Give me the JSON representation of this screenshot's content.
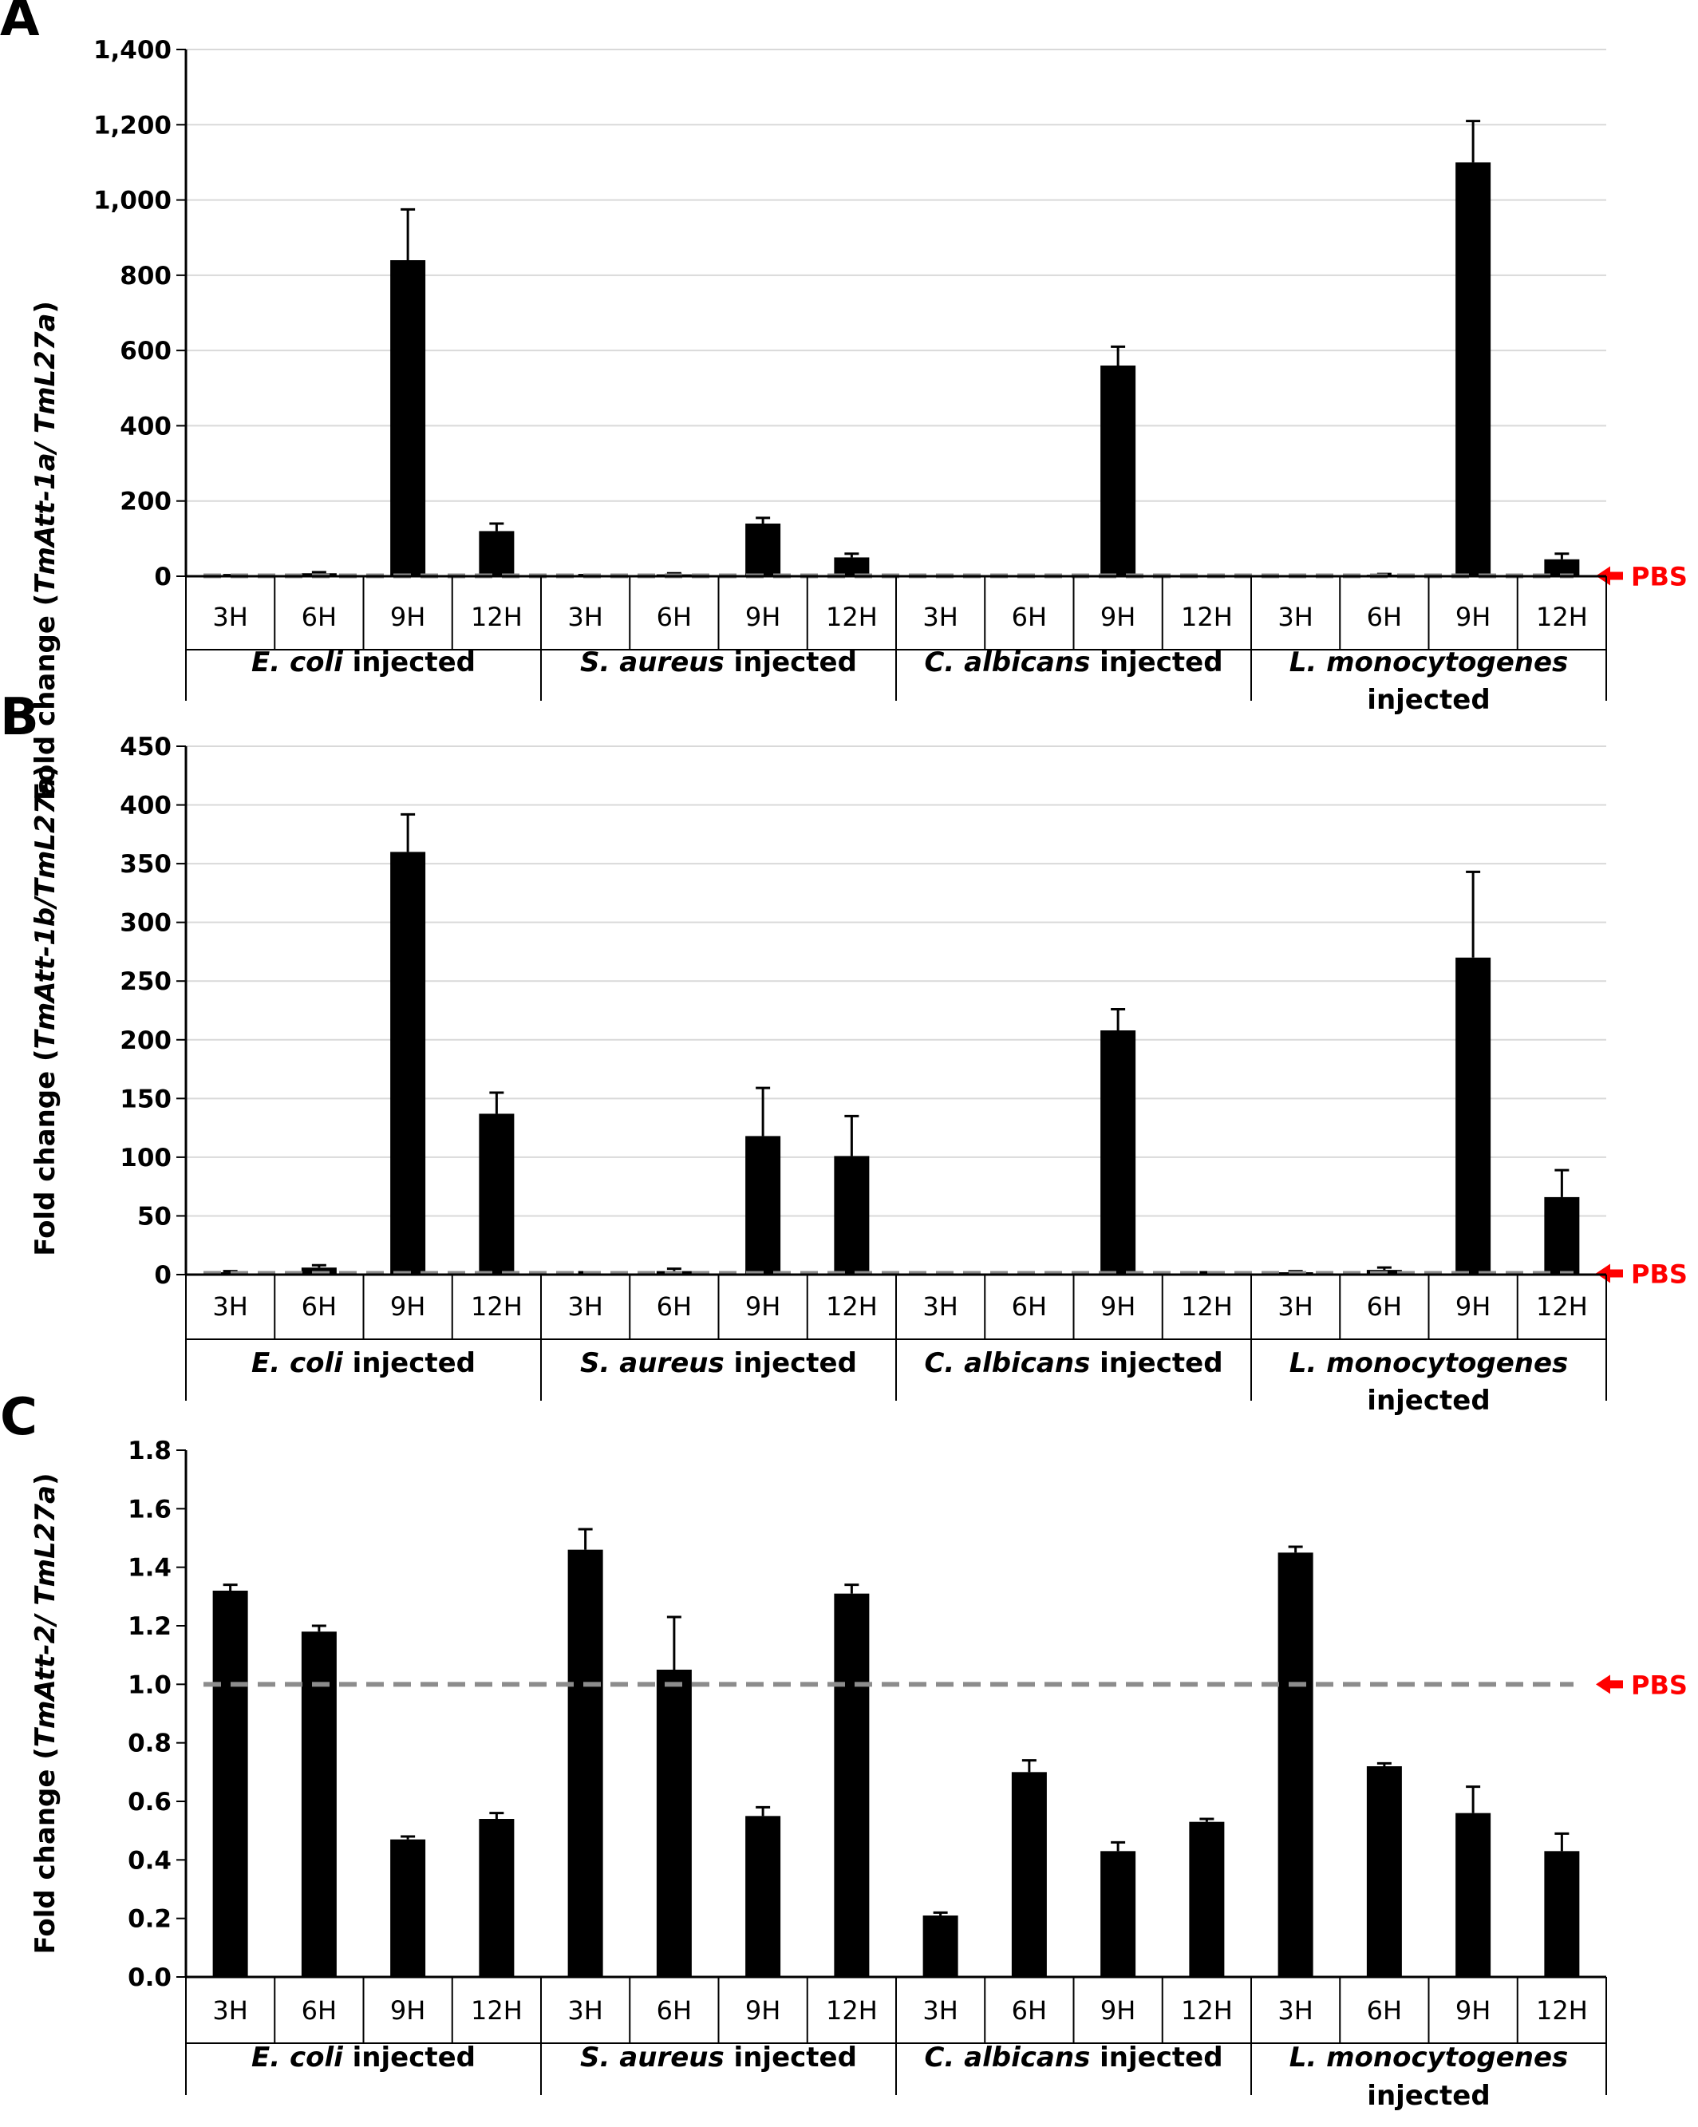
{
  "figure": {
    "pbs_label": "PBS",
    "colors": {
      "bar": "#000000",
      "grid": "#d9d9d9",
      "axis": "#000000",
      "pbs_line": "#8c8c8c",
      "pbs_label": "#ff0000",
      "text": "#000000"
    }
  },
  "chart_data": [
    {
      "panel": "A",
      "type": "bar",
      "ylabel_prefix": "Fold change (",
      "ylabel_gene": "TmAtt-1a/ TmL27a",
      "ylabel_suffix": ")",
      "ylim": [
        0,
        1400
      ],
      "yticks": [
        0,
        200,
        400,
        600,
        800,
        1000,
        1200,
        1400
      ],
      "ytick_labels": [
        "0",
        "200",
        "400",
        "600",
        "800",
        "1,000",
        "1,200",
        "1,400"
      ],
      "grid": true,
      "pbs_level": 1,
      "categories": [
        "3H",
        "6H",
        "9H",
        "12H",
        "3H",
        "6H",
        "9H",
        "12H",
        "3H",
        "6H",
        "9H",
        "12H",
        "3H",
        "6H",
        "9H",
        "12H"
      ],
      "groups": [
        {
          "species": "E. coli",
          "suffix": " injected",
          "two_line": false
        },
        {
          "species": "S. aureus",
          "suffix": " injected",
          "two_line": false
        },
        {
          "species": "C. albicans",
          "suffix": " injected",
          "two_line": false
        },
        {
          "species": "L. monocytogenes",
          "suffix": "injected",
          "two_line": true
        }
      ],
      "values": [
        2,
        8,
        840,
        120,
        2,
        5,
        140,
        50,
        1,
        1,
        560,
        1,
        1,
        4,
        1100,
        45
      ],
      "errors": [
        1,
        3,
        135,
        20,
        1,
        3,
        15,
        10,
        0,
        0,
        50,
        0,
        0,
        2,
        110,
        15
      ]
    },
    {
      "panel": "B",
      "type": "bar",
      "ylabel_prefix": "Fold change (",
      "ylabel_gene": "TmAtt-1b/TmL27a",
      "ylabel_suffix": ")",
      "ylim": [
        0,
        450
      ],
      "yticks": [
        0,
        50,
        100,
        150,
        200,
        250,
        300,
        350,
        400,
        450
      ],
      "ytick_labels": [
        "0",
        "50",
        "100",
        "150",
        "200",
        "250",
        "300",
        "350",
        "400",
        "450"
      ],
      "grid": true,
      "pbs_level": 1,
      "categories": [
        "3H",
        "6H",
        "9H",
        "12H",
        "3H",
        "6H",
        "9H",
        "12H",
        "3H",
        "6H",
        "9H",
        "12H",
        "3H",
        "6H",
        "9H",
        "12H"
      ],
      "groups": [
        {
          "species": "E. coli",
          "suffix": " injected",
          "two_line": false
        },
        {
          "species": "S. aureus",
          "suffix": " injected",
          "two_line": false
        },
        {
          "species": "C. albicans",
          "suffix": " injected",
          "two_line": false
        },
        {
          "species": "L. monocytogenes",
          "suffix": "injected",
          "two_line": true
        }
      ],
      "values": [
        2,
        6,
        360,
        137,
        1,
        3,
        118,
        101,
        0.5,
        0.5,
        208,
        1,
        2,
        4,
        270,
        66
      ],
      "errors": [
        1,
        2,
        32,
        18,
        1,
        2,
        41,
        34,
        0,
        0,
        18,
        1,
        1,
        2,
        73,
        23
      ]
    },
    {
      "panel": "C",
      "type": "bar",
      "ylabel_prefix": "Fold change (",
      "ylabel_gene": "TmAtt-2/ TmL27a",
      "ylabel_suffix": ")",
      "ylim": [
        0,
        1.8
      ],
      "yticks": [
        0,
        0.2,
        0.4,
        0.6,
        0.8,
        1.0,
        1.2,
        1.4,
        1.6,
        1.8
      ],
      "ytick_labels": [
        "0.0",
        "0.2",
        "0.4",
        "0.6",
        "0.8",
        "1.0",
        "1.2",
        "1.4",
        "1.6",
        "1.8"
      ],
      "grid": false,
      "pbs_level": 1.0,
      "categories": [
        "3H",
        "6H",
        "9H",
        "12H",
        "3H",
        "6H",
        "9H",
        "12H",
        "3H",
        "6H",
        "9H",
        "12H",
        "3H",
        "6H",
        "9H",
        "12H"
      ],
      "groups": [
        {
          "species": "E. coli",
          "suffix": " injected",
          "two_line": false
        },
        {
          "species": "S. aureus",
          "suffix": " injected",
          "two_line": false
        },
        {
          "species": "C. albicans",
          "suffix": " injected",
          "two_line": false
        },
        {
          "species": "L. monocytogenes",
          "suffix": "injected",
          "two_line": true
        }
      ],
      "values": [
        1.32,
        1.18,
        0.47,
        0.54,
        1.46,
        1.05,
        0.55,
        1.31,
        0.21,
        0.7,
        0.43,
        0.53,
        1.45,
        0.72,
        0.56,
        0.43
      ],
      "errors": [
        0.02,
        0.02,
        0.01,
        0.02,
        0.07,
        0.18,
        0.03,
        0.03,
        0.01,
        0.04,
        0.03,
        0.01,
        0.02,
        0.01,
        0.09,
        0.06
      ]
    }
  ]
}
